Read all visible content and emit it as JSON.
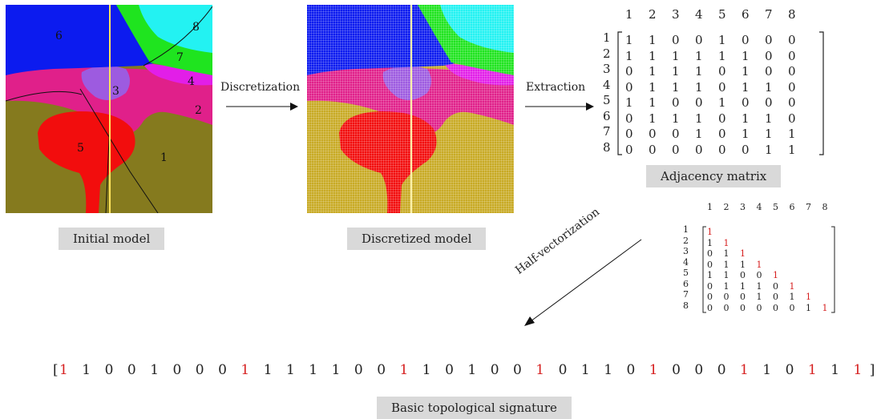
{
  "panels": {
    "initial": {
      "caption": "Initial model",
      "region_labels": [
        "6",
        "8",
        "7",
        "4",
        "3",
        "2",
        "5",
        "1"
      ]
    },
    "discretized": {
      "caption": "Discretized model"
    }
  },
  "steps": {
    "discretization": "Discretization",
    "extraction": "Extraction",
    "half_vectorization": "Half-vectorization"
  },
  "adjacency": {
    "caption": "Adjacency matrix",
    "labels": [
      "1",
      "2",
      "3",
      "4",
      "5",
      "6",
      "7",
      "8"
    ],
    "rows": [
      [
        1,
        1,
        0,
        0,
        1,
        0,
        0,
        0
      ],
      [
        1,
        1,
        1,
        1,
        1,
        1,
        0,
        0
      ],
      [
        0,
        1,
        1,
        1,
        0,
        1,
        0,
        0
      ],
      [
        0,
        1,
        1,
        1,
        0,
        1,
        1,
        0
      ],
      [
        1,
        1,
        0,
        0,
        1,
        0,
        0,
        0
      ],
      [
        0,
        1,
        1,
        1,
        0,
        1,
        1,
        0
      ],
      [
        0,
        0,
        0,
        1,
        0,
        1,
        1,
        1
      ],
      [
        0,
        0,
        0,
        0,
        0,
        0,
        1,
        1
      ]
    ]
  },
  "half_matrix": {
    "labels": [
      "1",
      "2",
      "3",
      "4",
      "5",
      "6",
      "7",
      "8"
    ],
    "rows": [
      [
        1
      ],
      [
        1,
        1
      ],
      [
        0,
        1,
        1
      ],
      [
        0,
        1,
        1,
        1
      ],
      [
        1,
        1,
        0,
        0,
        1
      ],
      [
        0,
        1,
        1,
        1,
        0,
        1
      ],
      [
        0,
        0,
        0,
        1,
        0,
        1,
        1
      ],
      [
        0,
        0,
        0,
        0,
        0,
        0,
        1,
        1
      ]
    ]
  },
  "signature": {
    "caption": "Basic topological signature",
    "open_bracket": "[",
    "close_bracket": "]",
    "values": [
      1,
      1,
      0,
      0,
      1,
      0,
      0,
      0,
      1,
      1,
      1,
      1,
      1,
      0,
      0,
      1,
      1,
      0,
      1,
      0,
      0,
      1,
      0,
      1,
      1,
      0,
      1,
      0,
      0,
      0,
      1,
      1,
      0,
      1,
      1,
      1
    ],
    "highlight_indices": [
      0,
      8,
      15,
      21,
      26,
      30,
      33,
      35
    ]
  },
  "colors": {
    "region1": "#857a1e",
    "region2": "#e0208a",
    "region3": "#9d5be0",
    "region4": "#e21ee8",
    "region5": "#f20d0d",
    "region6": "#0c1bef",
    "region7": "#1fe41f",
    "region8": "#23f2f2",
    "highlight": "#d62020",
    "caption_bg": "#d9d9d9"
  }
}
